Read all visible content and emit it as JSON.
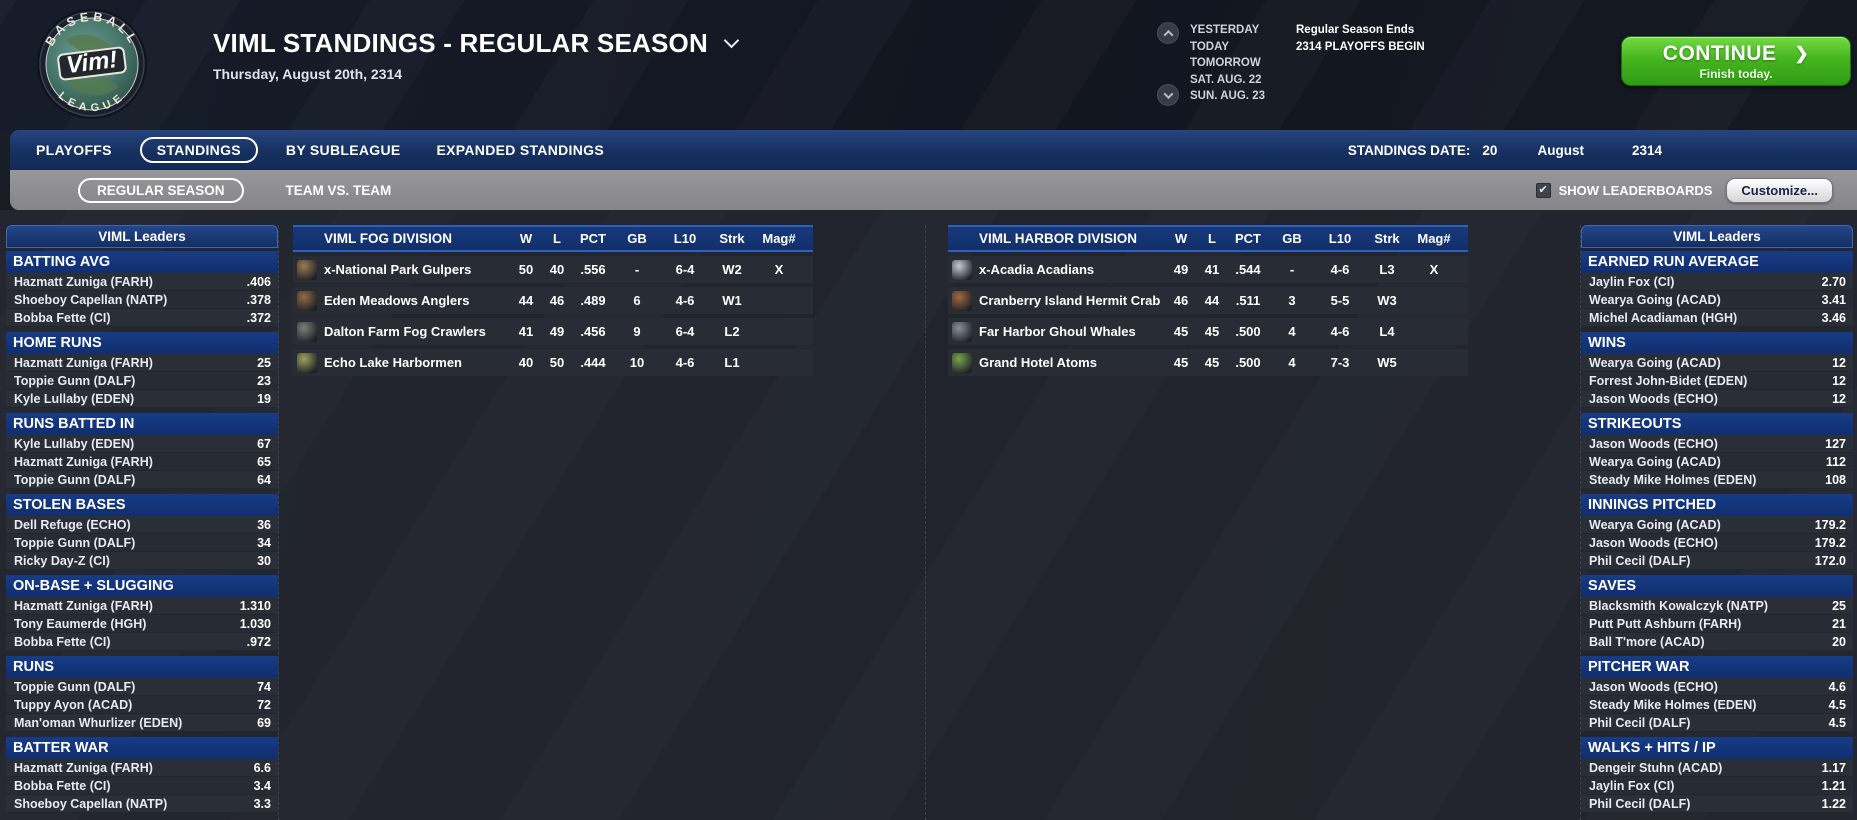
{
  "header": {
    "logo": {
      "top": "BASEBALL",
      "center": "Vim!",
      "bottom": "LEAGUE"
    },
    "title": "VIML STANDINGS - REGULAR SEASON",
    "date": "Thursday, August 20th, 2314",
    "schedule_days": [
      "YESTERDAY",
      "TODAY",
      "TOMORROW",
      "SAT. AUG. 22",
      "SUN. AUG. 23"
    ],
    "schedule_events": [
      "Regular Season Ends",
      "2314 PLAYOFFS BEGIN"
    ],
    "continue": {
      "label": "CONTINUE",
      "sub": "Finish today.",
      "arrow": "❯"
    }
  },
  "nav": {
    "tabs": [
      {
        "label": "PLAYOFFS",
        "selected": false
      },
      {
        "label": "STANDINGS",
        "selected": true
      },
      {
        "label": "BY SUBLEAGUE",
        "selected": false
      },
      {
        "label": "EXPANDED STANDINGS",
        "selected": false
      }
    ],
    "standings_date": {
      "label": "STANDINGS DATE:",
      "day": "20",
      "month": "August",
      "year": "2314"
    }
  },
  "subnav": {
    "tabs": [
      {
        "label": "REGULAR SEASON",
        "selected": true
      },
      {
        "label": "TEAM VS. TEAM",
        "selected": false
      }
    ],
    "show_leaderboards_label": "SHOW LEADERBOARDS",
    "show_leaderboards_checked": true,
    "customize_label": "Customize..."
  },
  "leaders_left": {
    "title": "VIML Leaders",
    "sections": [
      {
        "name": "BATTING AVG",
        "rows": [
          {
            "player": "Hazmatt Zuniga (FARH)",
            "value": ".406"
          },
          {
            "player": "Shoeboy Capellan (NATP)",
            "value": ".378"
          },
          {
            "player": "Bobba Fette (CI)",
            "value": ".372"
          }
        ]
      },
      {
        "name": "HOME RUNS",
        "rows": [
          {
            "player": "Hazmatt Zuniga (FARH)",
            "value": "25"
          },
          {
            "player": "Toppie Gunn (DALF)",
            "value": "23"
          },
          {
            "player": "Kyle Lullaby (EDEN)",
            "value": "19"
          }
        ]
      },
      {
        "name": "RUNS BATTED IN",
        "rows": [
          {
            "player": "Kyle Lullaby (EDEN)",
            "value": "67"
          },
          {
            "player": "Hazmatt Zuniga (FARH)",
            "value": "65"
          },
          {
            "player": "Toppie Gunn (DALF)",
            "value": "64"
          }
        ]
      },
      {
        "name": "STOLEN BASES",
        "rows": [
          {
            "player": "Dell Refuge (ECHO)",
            "value": "36"
          },
          {
            "player": "Toppie Gunn (DALF)",
            "value": "34"
          },
          {
            "player": "Ricky Day-Z (CI)",
            "value": "30"
          }
        ]
      },
      {
        "name": "ON-BASE + SLUGGING",
        "rows": [
          {
            "player": "Hazmatt Zuniga (FARH)",
            "value": "1.310"
          },
          {
            "player": "Tony Eaumerde (HGH)",
            "value": "1.030"
          },
          {
            "player": "Bobba Fette (CI)",
            "value": ".972"
          }
        ]
      },
      {
        "name": "RUNS",
        "rows": [
          {
            "player": "Toppie Gunn (DALF)",
            "value": "74"
          },
          {
            "player": "Tuppy Ayon (ACAD)",
            "value": "72"
          },
          {
            "player": "Man'oman Whurlizer (EDEN)",
            "value": "69"
          }
        ]
      },
      {
        "name": "BATTER WAR",
        "rows": [
          {
            "player": "Hazmatt Zuniga (FARH)",
            "value": "6.6"
          },
          {
            "player": "Bobba Fette (CI)",
            "value": "3.4"
          },
          {
            "player": "Shoeboy Capellan (NATP)",
            "value": "3.3"
          }
        ]
      }
    ]
  },
  "leaders_right": {
    "title": "VIML Leaders",
    "sections": [
      {
        "name": "EARNED RUN AVERAGE",
        "rows": [
          {
            "player": "Jaylin Fox (CI)",
            "value": "2.70"
          },
          {
            "player": "Wearya Going (ACAD)",
            "value": "3.41"
          },
          {
            "player": "Michel Acadiaman (HGH)",
            "value": "3.46"
          }
        ]
      },
      {
        "name": "WINS",
        "rows": [
          {
            "player": "Wearya Going (ACAD)",
            "value": "12"
          },
          {
            "player": "Forrest John-Bidet (EDEN)",
            "value": "12"
          },
          {
            "player": "Jason Woods (ECHO)",
            "value": "12"
          }
        ]
      },
      {
        "name": "STRIKEOUTS",
        "rows": [
          {
            "player": "Jason Woods (ECHO)",
            "value": "127"
          },
          {
            "player": "Wearya Going (ACAD)",
            "value": "112"
          },
          {
            "player": "Steady Mike Holmes (EDEN)",
            "value": "108"
          }
        ]
      },
      {
        "name": "INNINGS PITCHED",
        "rows": [
          {
            "player": "Wearya Going (ACAD)",
            "value": "179.2"
          },
          {
            "player": "Jason Woods (ECHO)",
            "value": "179.2"
          },
          {
            "player": "Phil Cecil (DALF)",
            "value": "172.0"
          }
        ]
      },
      {
        "name": "SAVES",
        "rows": [
          {
            "player": "Blacksmith Kowalczyk (NATP)",
            "value": "25"
          },
          {
            "player": "Putt Putt Ashburn (FARH)",
            "value": "21"
          },
          {
            "player": "Ball T'more (ACAD)",
            "value": "20"
          }
        ]
      },
      {
        "name": "PITCHER WAR",
        "rows": [
          {
            "player": "Jason Woods (ECHO)",
            "value": "4.6"
          },
          {
            "player": "Steady Mike Holmes (EDEN)",
            "value": "4.5"
          },
          {
            "player": "Phil Cecil (DALF)",
            "value": "4.5"
          }
        ]
      },
      {
        "name": "WALKS + HITS / IP",
        "rows": [
          {
            "player": "Dengeir Stuhn (ACAD)",
            "value": "1.17"
          },
          {
            "player": "Jaylin Fox (CI)",
            "value": "1.21"
          },
          {
            "player": "Phil Cecil (DALF)",
            "value": "1.22"
          }
        ]
      }
    ]
  },
  "divisions": [
    {
      "name": "VIML FOG DIVISION",
      "columns": [
        "W",
        "L",
        "PCT",
        "GB",
        "L10",
        "Strk",
        "Mag#"
      ],
      "teams": [
        {
          "name": "x-National Park Gulpers",
          "logo_color": "#9a7b52",
          "w": "50",
          "l": "40",
          "pct": ".556",
          "gb": "-",
          "l10": "6-4",
          "strk": "W2",
          "mag": "X"
        },
        {
          "name": "Eden Meadows Anglers",
          "logo_color": "#8f6b46",
          "w": "44",
          "l": "46",
          "pct": ".489",
          "gb": "6",
          "l10": "4-6",
          "strk": "W1",
          "mag": ""
        },
        {
          "name": "Dalton Farm Fog Crawlers",
          "logo_color": "#7c8078",
          "w": "41",
          "l": "49",
          "pct": ".456",
          "gb": "9",
          "l10": "6-4",
          "strk": "L2",
          "mag": ""
        },
        {
          "name": "Echo Lake Harbormen",
          "logo_color": "#9fa060",
          "w": "40",
          "l": "50",
          "pct": ".444",
          "gb": "10",
          "l10": "4-6",
          "strk": "L1",
          "mag": ""
        }
      ]
    },
    {
      "name": "VIML HARBOR DIVISION",
      "columns": [
        "W",
        "L",
        "PCT",
        "GB",
        "L10",
        "Strk",
        "Mag#"
      ],
      "teams": [
        {
          "name": "x-Acadia Acadians",
          "logo_color": "#c6cbd2",
          "w": "49",
          "l": "41",
          "pct": ".544",
          "gb": "-",
          "l10": "4-6",
          "strk": "L3",
          "mag": "X"
        },
        {
          "name": "Cranberry Island Hermit Crab",
          "logo_color": "#a06a3e",
          "w": "46",
          "l": "44",
          "pct": ".511",
          "gb": "3",
          "l10": "5-5",
          "strk": "W3",
          "mag": ""
        },
        {
          "name": "Far Harbor Ghoul Whales",
          "logo_color": "#8b9097",
          "w": "45",
          "l": "45",
          "pct": ".500",
          "gb": "4",
          "l10": "4-6",
          "strk": "L4",
          "mag": ""
        },
        {
          "name": "Grand Hotel Atoms",
          "logo_color": "#7aa24c",
          "w": "45",
          "l": "45",
          "pct": ".500",
          "gb": "4",
          "l10": "7-3",
          "strk": "W5",
          "mag": ""
        }
      ]
    }
  ],
  "colors": {
    "continue_green": "#46b51f",
    "nav_navy": "#16305f",
    "table_header_navy": "#17397c",
    "header_border_blue": "#2f5fb6",
    "subnav_gray": "#8c8c8e"
  }
}
